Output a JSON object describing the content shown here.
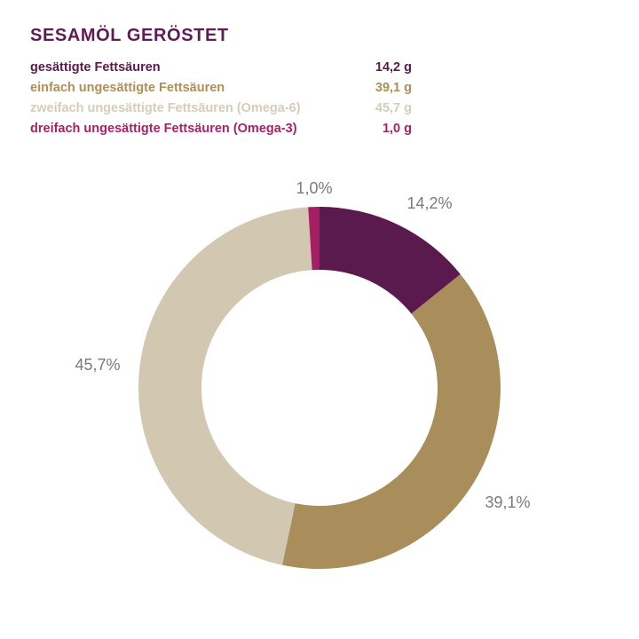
{
  "page": {
    "background_color": "#ffffff"
  },
  "header": {
    "title": "SESAMÖL GERÖSTET",
    "title_color": "#5F1B55"
  },
  "legend": {
    "rows": [
      {
        "label": "gesättigte Fettsäuren",
        "value": "14,2 g",
        "color": "#5B1A4E"
      },
      {
        "label": "einfach ungesättigte Fettsäuren",
        "value": "39,1 g",
        "color": "#AF8F55"
      },
      {
        "label": "zweifach ungesättigte Fettsäuren (Omega-6)",
        "value": "45,7 g",
        "color": "#D6CDB8"
      },
      {
        "label": "dreifach ungesättigte Fettsäuren (Omega-3)",
        "value": "1,0 g",
        "color": "#A62367"
      }
    ]
  },
  "chart_data": {
    "type": "pie",
    "subtype": "donut",
    "title": "SESAMÖL GERÖSTET",
    "unit": "g per 100 g",
    "direction": "clockwise",
    "start_angle_deg": 0,
    "center": [
      360,
      437
    ],
    "outer_radius": 204,
    "inner_radius": 133,
    "label_color": "#7A7A7A",
    "slices": [
      {
        "name": "gesättigte Fettsäuren",
        "value": 14.2,
        "pct_label": "14,2%",
        "color": "#5B1A4E",
        "label_pos": [
          484,
          229
        ]
      },
      {
        "name": "einfach ungesättigte Fettsäuren",
        "value": 39.1,
        "pct_label": "39,1%",
        "color": "#A98E5B",
        "label_pos": [
          572,
          566
        ]
      },
      {
        "name": "zweifach ungesättigte Fettsäuren (Omega-6)",
        "value": 45.7,
        "pct_label": "45,7%",
        "color": "#D2C8B2",
        "label_pos": [
          110,
          411
        ]
      },
      {
        "name": "dreifach ungesättigte Fettsäuren (Omega-3)",
        "value": 1.0,
        "pct_label": "1,0%",
        "color": "#A61F63",
        "label_pos": [
          354,
          212
        ]
      }
    ]
  }
}
